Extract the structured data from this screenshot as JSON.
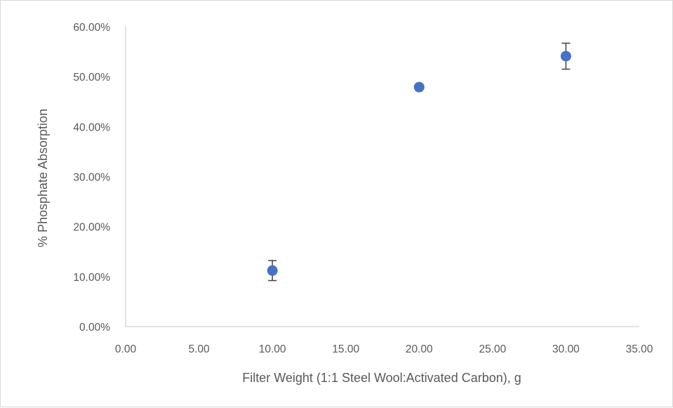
{
  "chart_data": {
    "type": "scatter",
    "title": "",
    "xlabel": "Filter Weight (1:1 Steel Wool:Activated Carbon), g",
    "ylabel": "% Phosphate Absorption",
    "xlim": [
      0,
      35
    ],
    "ylim": [
      0,
      0.6
    ],
    "x_ticks": [
      0,
      5,
      10,
      15,
      20,
      25,
      30,
      35
    ],
    "x_tick_labels": [
      "0.00",
      "5.00",
      "10.00",
      "15.00",
      "20.00",
      "25.00",
      "30.00",
      "35.00"
    ],
    "y_ticks": [
      0,
      0.1,
      0.2,
      0.3,
      0.4,
      0.5,
      0.6
    ],
    "y_tick_labels": [
      "0.00%",
      "10.00%",
      "20.00%",
      "30.00%",
      "40.00%",
      "50.00%",
      "60.00%"
    ],
    "grid": false,
    "legend": "none",
    "series": [
      {
        "x": [
          10,
          20,
          30
        ],
        "y": [
          0.112,
          0.479,
          0.541
        ],
        "error": [
          0.02,
          0.0,
          0.026
        ],
        "color": "#4472c4",
        "error_color": "#404040"
      }
    ]
  }
}
